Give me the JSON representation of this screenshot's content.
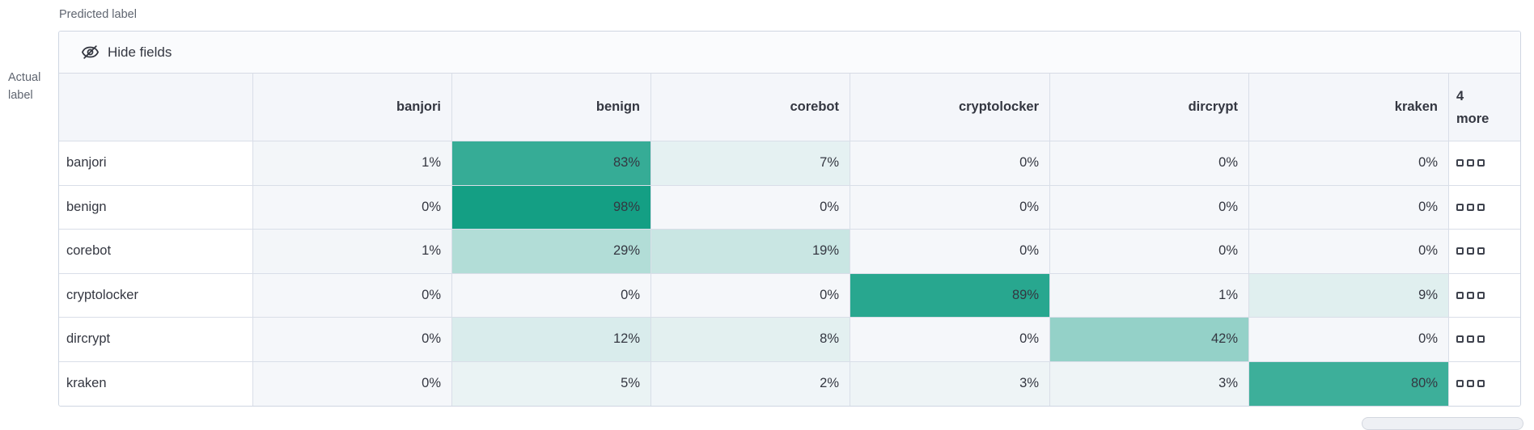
{
  "toolbar": {
    "hide_fields_label": "Hide fields",
    "icon": "eye-closed"
  },
  "chart_data": {
    "type": "heatmap",
    "x_axis_label": "Predicted label",
    "y_axis_label": "Actual label",
    "columns": [
      "banjori",
      "benign",
      "corebot",
      "cryptolocker",
      "dircrypt",
      "kraken"
    ],
    "overflow_column_label": "4 more",
    "rows": [
      "banjori",
      "benign",
      "corebot",
      "cryptolocker",
      "dircrypt",
      "kraken"
    ],
    "values_percent": [
      [
        1,
        83,
        7,
        0,
        0,
        0
      ],
      [
        0,
        98,
        0,
        0,
        0,
        0
      ],
      [
        1,
        29,
        19,
        0,
        0,
        0
      ],
      [
        0,
        0,
        0,
        89,
        1,
        9
      ],
      [
        0,
        12,
        8,
        0,
        42,
        0
      ],
      [
        0,
        5,
        2,
        3,
        3,
        80
      ]
    ],
    "cell_value_suffix": "%",
    "legend": "off",
    "grid": "on"
  },
  "icons": {
    "hide_fields": "eye-closed-icon",
    "row_overflow": "boxes-horizontal-icon"
  },
  "colors": {
    "heatmap_min": "#F5F7FA",
    "heatmap_max": "#0F9D82",
    "cell_text": "#343741",
    "axis_label_text": "#5F6570",
    "border": "#D9DEE8",
    "panel_border": "#CFD6E2",
    "header_bg": "#F4F6FA",
    "toolbar_bg": "#FAFBFD"
  }
}
